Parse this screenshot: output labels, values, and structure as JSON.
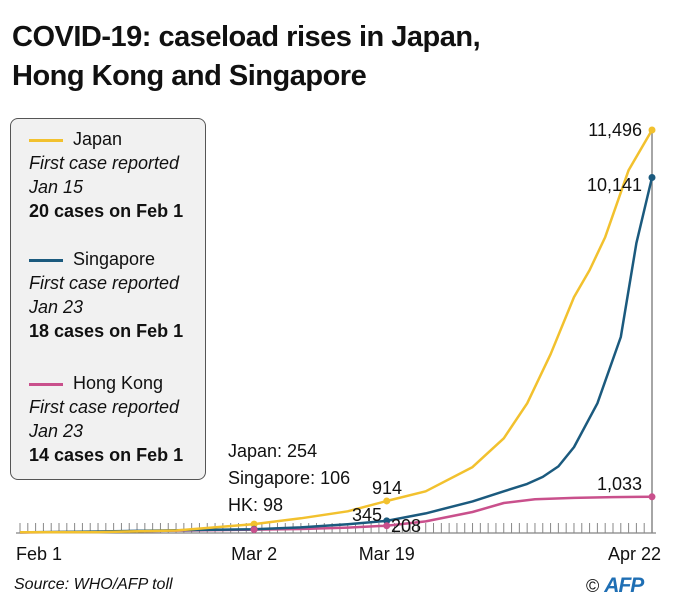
{
  "title_line1": "COVID-19: caseload rises in Japan,",
  "title_line2": "Hong Kong and Singapore",
  "legend": [
    {
      "name": "Japan",
      "first": "First case reported",
      "date": "Jan 15",
      "feb1": "20  cases on Feb 1",
      "color": "#f2c12e"
    },
    {
      "name": "Singapore",
      "first": "First case reported",
      "date": "Jan 23",
      "feb1": "18 cases on Feb 1",
      "color": "#1b5a7e"
    },
    {
      "name": "Hong Kong",
      "first": "First case reported",
      "date": "Jan 23",
      "feb1": "14 cases on Feb 1",
      "color": "#c9508c"
    }
  ],
  "source": "Source: WHO/AFP toll",
  "credit": "©",
  "logo": "AFP",
  "chart_data": {
    "type": "line",
    "title": "COVID-19: caseload rises in Japan, Hong Kong and Singapore",
    "xlabel": "",
    "ylabel": "",
    "x_unit": "days since Feb 1",
    "xlim": [
      0,
      81
    ],
    "ylim": [
      0,
      11496
    ],
    "x_ticks": [
      {
        "day": 0,
        "label": "Feb 1"
      },
      {
        "day": 30,
        "label": "Mar 2"
      },
      {
        "day": 47,
        "label": "Mar 19"
      },
      {
        "day": 81,
        "label": "Apr 22"
      }
    ],
    "series": [
      {
        "name": "Japan",
        "color": "#f2c12e",
        "x": [
          0,
          10,
          20,
          30,
          36,
          42,
          47,
          52,
          58,
          62,
          65,
          68,
          71,
          73,
          75,
          78,
          81
        ],
        "y": [
          20,
          26,
          70,
          254,
          420,
          620,
          914,
          1190,
          1880,
          2700,
          3700,
          5100,
          6730,
          7500,
          8440,
          10350,
          11496
        ]
      },
      {
        "name": "Singapore",
        "color": "#1b5a7e",
        "x": [
          0,
          10,
          20,
          30,
          36,
          42,
          47,
          52,
          58,
          62,
          65,
          67,
          69,
          71,
          74,
          77,
          79,
          81
        ],
        "y": [
          18,
          43,
          77,
          106,
          160,
          250,
          345,
          560,
          900,
          1190,
          1400,
          1600,
          1900,
          2450,
          3700,
          5590,
          8270,
          10141
        ]
      },
      {
        "name": "Hong Kong",
        "color": "#c9508c",
        "x": [
          0,
          10,
          20,
          30,
          36,
          42,
          47,
          52,
          58,
          62,
          66,
          71,
          76,
          81
        ],
        "y": [
          14,
          36,
          68,
          98,
          115,
          155,
          208,
          330,
          600,
          855,
          960,
          1000,
          1025,
          1033
        ]
      }
    ],
    "annotations": [
      {
        "text": "Japan: 254"
      },
      {
        "text": "Singapore: 106"
      },
      {
        "text": "HK: 98"
      },
      {
        "text": "914"
      },
      {
        "text": "345"
      },
      {
        "text": "208"
      },
      {
        "text": "11,496"
      },
      {
        "text": "10,141"
      },
      {
        "text": "1,033"
      }
    ]
  }
}
